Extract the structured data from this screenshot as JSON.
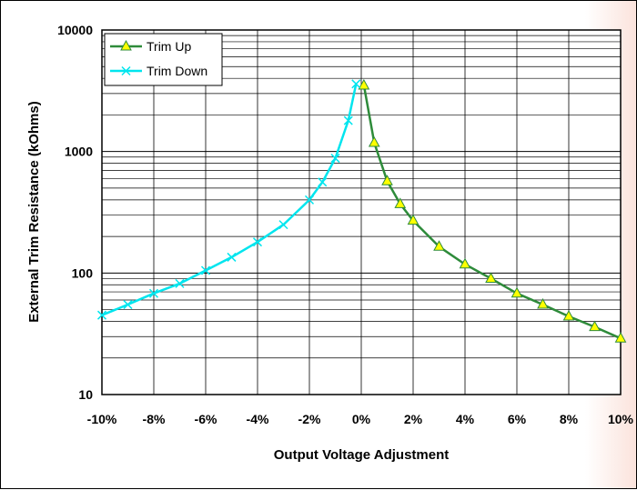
{
  "chart_data": {
    "type": "line",
    "title": "",
    "xlabel": "Output Voltage Adjustment",
    "ylabel": "External Trim Resistance (kOhms)",
    "x_scale": "linear",
    "y_scale": "log",
    "xlim": [
      -10,
      10
    ],
    "ylim": [
      10,
      10000
    ],
    "x_ticks": [
      "-10%",
      "-8%",
      "-6%",
      "-4%",
      "-2%",
      "0%",
      "2%",
      "4%",
      "6%",
      "8%",
      "10%"
    ],
    "y_ticks": [
      "10",
      "100",
      "1000",
      "10000"
    ],
    "grid": true,
    "legend": "top-left",
    "series": [
      {
        "name": "Trim Up",
        "color": "#2e8b3a",
        "marker": "triangle",
        "marker_color": "#ffff00",
        "x": [
          0.1,
          0.5,
          1,
          1.5,
          2,
          3,
          4,
          5,
          6,
          7,
          8,
          9,
          10
        ],
        "y": [
          3500,
          1180,
          570,
          370,
          270,
          165,
          118,
          90,
          68,
          55,
          44,
          36,
          29
        ]
      },
      {
        "name": "Trim Down",
        "color": "#00e5ee",
        "marker": "x",
        "x": [
          -0.2,
          -0.5,
          -1,
          -1.5,
          -2,
          -3,
          -4,
          -5,
          -6,
          -7,
          -8,
          -9,
          -10
        ],
        "y": [
          3600,
          1800,
          880,
          560,
          400,
          250,
          180,
          135,
          105,
          82,
          68,
          55,
          45
        ]
      }
    ]
  }
}
